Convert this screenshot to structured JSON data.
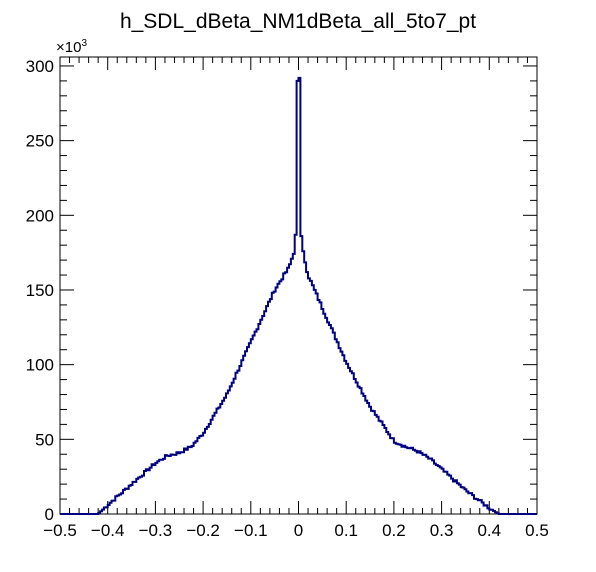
{
  "chart_data": {
    "type": "line",
    "title": "h_SDL_dBeta_NM1dBeta_all_5to7_pt",
    "xlabel": "",
    "ylabel": "",
    "xlim": [
      -0.5,
      0.5
    ],
    "ylim": [
      0,
      306
    ],
    "y_multiplier_label": "×10",
    "y_multiplier_exponent": "3",
    "x_ticks": [
      "−0.5",
      "−0.4",
      "−0.3",
      "−0.2",
      "−0.1",
      "0",
      "0.1",
      "0.2",
      "0.3",
      "0.4",
      "0.5"
    ],
    "x_tick_values": [
      -0.5,
      -0.4,
      -0.3,
      -0.2,
      -0.1,
      0,
      0.1,
      0.2,
      0.3,
      0.4,
      0.5
    ],
    "y_ticks": [
      "0",
      "50",
      "100",
      "150",
      "200",
      "250",
      "300"
    ],
    "y_tick_values": [
      0,
      50,
      100,
      150,
      200,
      250,
      300
    ],
    "series_color": "#000080",
    "grid": false,
    "legend": "none",
    "series": [
      {
        "x": [
          -0.5,
          -0.42,
          -0.4,
          -0.35,
          -0.3,
          -0.275,
          -0.25,
          -0.225,
          -0.2,
          -0.15,
          -0.1,
          -0.05,
          -0.02,
          -0.01,
          -0.005,
          -0.004,
          -0.003,
          -0.002,
          0.002,
          0.003,
          0.004,
          0.005,
          0.01,
          0.02,
          0.05,
          0.1,
          0.15,
          0.2,
          0.225,
          0.25,
          0.275,
          0.3,
          0.35,
          0.4,
          0.42,
          0.5
        ],
        "values": [
          0,
          0,
          6,
          20,
          34,
          39,
          41,
          45,
          54,
          80,
          115,
          150,
          165,
          175,
          190,
          210,
          260,
          290,
          292,
          262,
          210,
          188,
          175,
          160,
          138,
          102,
          72,
          49,
          45,
          42,
          37,
          30,
          16,
          4,
          0,
          0
        ]
      }
    ]
  }
}
